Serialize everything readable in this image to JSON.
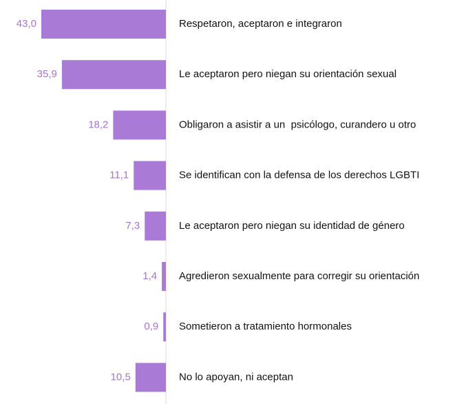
{
  "chart_data": {
    "type": "bar",
    "orientation": "horizontal",
    "categories": [
      "Respetaron, aceptaron e integraron",
      "Le aceptaron pero niegan su orientación sexual",
      "Obligaron a asistir a un  psicólogo, curandero u otro",
      "Se identifican con la defensa de los derechos LGBTI",
      "Le aceptaron pero niegan su identidad de género",
      "Agredieron sexualmente para corregir su orientación",
      "Sometieron a tratamiento hormonales",
      "No lo apoyan, ni aceptan"
    ],
    "values": [
      43.0,
      35.9,
      18.2,
      11.1,
      7.3,
      1.4,
      0.9,
      10.5
    ],
    "value_labels": [
      "43,0",
      "35,9",
      "18,2",
      "11,1",
      "7,3",
      "1,4",
      "0,9",
      "10,5"
    ],
    "color": "#a97ad6"
  }
}
